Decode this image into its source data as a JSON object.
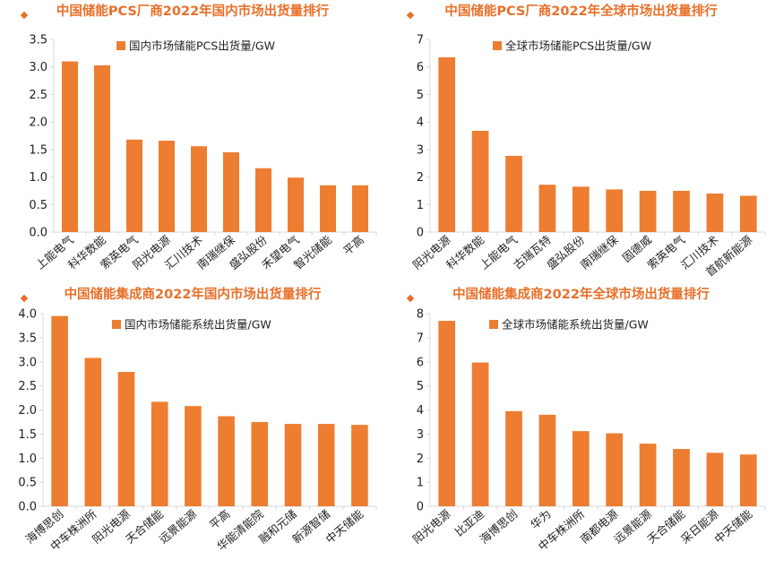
{
  "accent_color": "#E8702A",
  "bar_color": "#ED7D31",
  "axis_color": "#D9D9D9",
  "text_color": "#222222",
  "chart_data": [
    {
      "type": "bar",
      "title": "中国储能PCS厂商2022年国内市场出货量排行",
      "legend": "国内市场储能PCS出货量/GW",
      "legend_position": "top",
      "grid": false,
      "ylim": [
        0,
        3.5
      ],
      "yticks": [
        "0.0",
        "0.5",
        "1.0",
        "1.5",
        "2.0",
        "2.5",
        "3.0",
        "3.5"
      ],
      "categories": [
        "上能电气",
        "科华数能",
        "索英电气",
        "阳光电源",
        "汇川技术",
        "南瑞继保",
        "盛弘股份",
        "禾望电气",
        "智光储能",
        "平高"
      ],
      "values": [
        3.1,
        3.03,
        1.68,
        1.66,
        1.56,
        1.45,
        1.16,
        0.99,
        0.85,
        0.85
      ]
    },
    {
      "type": "bar",
      "title": "中国储能PCS厂商2022年全球市场出货量排行",
      "legend": "全球市场储能PCS出货量/GW",
      "legend_position": "top",
      "grid": false,
      "ylim": [
        0,
        7
      ],
      "yticks": [
        "0",
        "1",
        "2",
        "3",
        "4",
        "5",
        "6",
        "7"
      ],
      "categories": [
        "阳光电源",
        "科华数能",
        "上能电气",
        "古瑞瓦特",
        "盛弘股份",
        "南瑞继保",
        "固德威",
        "索英电气",
        "汇川技术",
        "首航新能源"
      ],
      "values": [
        6.35,
        3.68,
        2.77,
        1.72,
        1.65,
        1.55,
        1.5,
        1.5,
        1.4,
        1.32
      ]
    },
    {
      "type": "bar",
      "title": "中国储能集成商2022年国内市场出货量排行",
      "legend": "国内市场储能系统出货量/GW",
      "legend_position": "top",
      "grid": false,
      "ylim": [
        0,
        4.0
      ],
      "yticks": [
        "0.0",
        "0.5",
        "1.0",
        "1.5",
        "2.0",
        "2.5",
        "3.0",
        "3.5",
        "4.0"
      ],
      "categories": [
        "海博思创",
        "中车株洲所",
        "阳光电源",
        "天合储能",
        "远景能源",
        "平高",
        "华能清能院",
        "融和元储",
        "新源智储",
        "中天储能"
      ],
      "values": [
        3.95,
        3.08,
        2.79,
        2.17,
        2.08,
        1.87,
        1.75,
        1.71,
        1.71,
        1.69
      ]
    },
    {
      "type": "bar",
      "title": "中国储能集成商2022年全球市场出货量排行",
      "legend": "全球市场储能系统出货量/GW",
      "legend_position": "top",
      "grid": false,
      "ylim": [
        0,
        8
      ],
      "yticks": [
        "0",
        "1",
        "2",
        "3",
        "4",
        "5",
        "6",
        "7",
        "8"
      ],
      "categories": [
        "阳光电源",
        "比亚迪",
        "海博思创",
        "华为",
        "中车株洲所",
        "南都电源",
        "远景能源",
        "天合储能",
        "采日能源",
        "中天储能"
      ],
      "values": [
        7.7,
        5.97,
        3.95,
        3.8,
        3.12,
        3.03,
        2.6,
        2.38,
        2.22,
        2.15
      ]
    }
  ]
}
